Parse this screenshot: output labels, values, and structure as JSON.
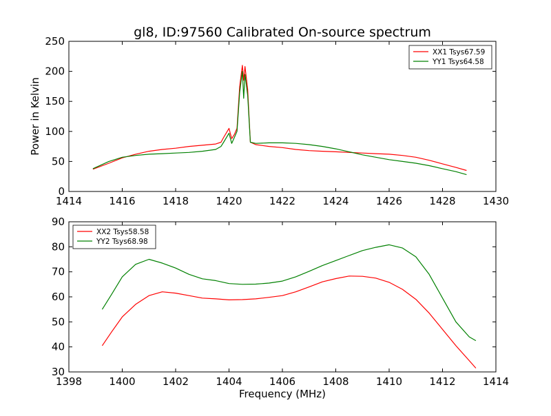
{
  "figure": {
    "title": "gl8, ID:97560 Calibrated On-source spectrum",
    "xlabel": "Frequency (MHz)",
    "ylabel_top": "Power in Kelvin",
    "colors": {
      "xx": "#ff0000",
      "yy": "#008000",
      "axis": "#000000"
    }
  },
  "chart_data": [
    {
      "type": "line",
      "title": "gl8, ID:97560 Calibrated On-source spectrum",
      "xlabel": "",
      "ylabel": "Power in Kelvin",
      "xlim": [
        1414,
        1430
      ],
      "ylim": [
        0,
        250
      ],
      "xticks": [
        1414,
        1416,
        1418,
        1420,
        1422,
        1424,
        1426,
        1428,
        1430
      ],
      "yticks": [
        0,
        50,
        100,
        150,
        200,
        250
      ],
      "grid": false,
      "legend_position": "top-right",
      "series": [
        {
          "name": "XX1 Tsys67.59",
          "color": "#ff0000",
          "x": [
            1414.9,
            1415.5,
            1416.0,
            1416.5,
            1417.0,
            1417.5,
            1418.0,
            1418.5,
            1419.0,
            1419.5,
            1419.7,
            1419.8,
            1420.0,
            1420.1,
            1420.2,
            1420.3,
            1420.4,
            1420.5,
            1420.55,
            1420.6,
            1420.7,
            1420.8,
            1421.0,
            1421.5,
            1422.0,
            1422.5,
            1423.0,
            1423.5,
            1424.0,
            1424.5,
            1425.0,
            1425.5,
            1426.0,
            1426.5,
            1427.0,
            1427.5,
            1428.0,
            1428.5,
            1428.9
          ],
          "values": [
            37,
            47,
            56,
            62,
            67,
            70,
            72,
            75,
            77,
            79,
            82,
            90,
            105,
            88,
            95,
            105,
            175,
            210,
            185,
            208,
            170,
            82,
            78,
            75,
            73,
            70,
            68,
            67,
            66,
            65,
            64,
            63,
            62,
            60,
            57,
            52,
            46,
            40,
            35
          ]
        },
        {
          "name": "YY1 Tsys64.58",
          "color": "#008000",
          "x": [
            1414.9,
            1415.5,
            1416.0,
            1416.5,
            1417.0,
            1417.5,
            1418.0,
            1418.5,
            1419.0,
            1419.5,
            1419.7,
            1419.8,
            1420.0,
            1420.1,
            1420.2,
            1420.3,
            1420.4,
            1420.5,
            1420.55,
            1420.6,
            1420.7,
            1420.8,
            1421.0,
            1421.5,
            1422.0,
            1422.5,
            1423.0,
            1423.5,
            1424.0,
            1424.5,
            1425.0,
            1425.5,
            1426.0,
            1426.5,
            1427.0,
            1427.5,
            1428.0,
            1428.5,
            1428.9
          ],
          "values": [
            38,
            50,
            57,
            60,
            62,
            63,
            64,
            65,
            67,
            70,
            75,
            82,
            97,
            80,
            90,
            100,
            165,
            200,
            155,
            195,
            160,
            82,
            80,
            81,
            81,
            80,
            78,
            75,
            71,
            66,
            61,
            57,
            53,
            50,
            47,
            43,
            38,
            33,
            28
          ]
        }
      ]
    },
    {
      "type": "line",
      "title": "",
      "xlabel": "Frequency (MHz)",
      "ylabel": "",
      "xlim": [
        1398,
        1414
      ],
      "ylim": [
        30,
        90
      ],
      "xticks": [
        1398,
        1400,
        1402,
        1404,
        1406,
        1408,
        1410,
        1412,
        1414
      ],
      "yticks": [
        30,
        40,
        50,
        60,
        70,
        80,
        90
      ],
      "grid": false,
      "legend_position": "top-left",
      "series": [
        {
          "name": "XX2 Tsys58.58",
          "color": "#ff0000",
          "x": [
            1399.25,
            1399.6,
            1400.0,
            1400.5,
            1401.0,
            1401.5,
            1402.0,
            1402.5,
            1403.0,
            1403.5,
            1404.0,
            1404.5,
            1405.0,
            1405.5,
            1406.0,
            1406.5,
            1407.0,
            1407.5,
            1408.0,
            1408.5,
            1409.0,
            1409.5,
            1410.0,
            1410.5,
            1411.0,
            1411.5,
            1412.0,
            1412.5,
            1413.0,
            1413.25
          ],
          "values": [
            40.5,
            46,
            52,
            57,
            60.5,
            62,
            61.5,
            60.5,
            59.5,
            59.2,
            58.8,
            58.9,
            59.2,
            59.8,
            60.5,
            62,
            64,
            66,
            67.3,
            68.3,
            68.2,
            67.5,
            65.8,
            63,
            59,
            53.5,
            47,
            40.5,
            34.5,
            31.5
          ]
        },
        {
          "name": "YY2 Tsys68.98",
          "color": "#008000",
          "x": [
            1399.25,
            1399.6,
            1400.0,
            1400.5,
            1401.0,
            1401.5,
            1402.0,
            1402.5,
            1403.0,
            1403.5,
            1404.0,
            1404.5,
            1405.0,
            1405.5,
            1406.0,
            1406.5,
            1407.0,
            1407.5,
            1408.0,
            1408.5,
            1409.0,
            1409.5,
            1410.0,
            1410.5,
            1411.0,
            1411.5,
            1412.0,
            1412.5,
            1413.0,
            1413.25
          ],
          "values": [
            55,
            61,
            68,
            73,
            75,
            73.5,
            71.5,
            69,
            67.2,
            66.5,
            65.3,
            65,
            65.1,
            65.5,
            66.3,
            68,
            70.2,
            72.5,
            74.5,
            76.5,
            78.5,
            79.8,
            80.8,
            79.5,
            76,
            69,
            59.5,
            50,
            44,
            42.5
          ]
        }
      ]
    }
  ]
}
